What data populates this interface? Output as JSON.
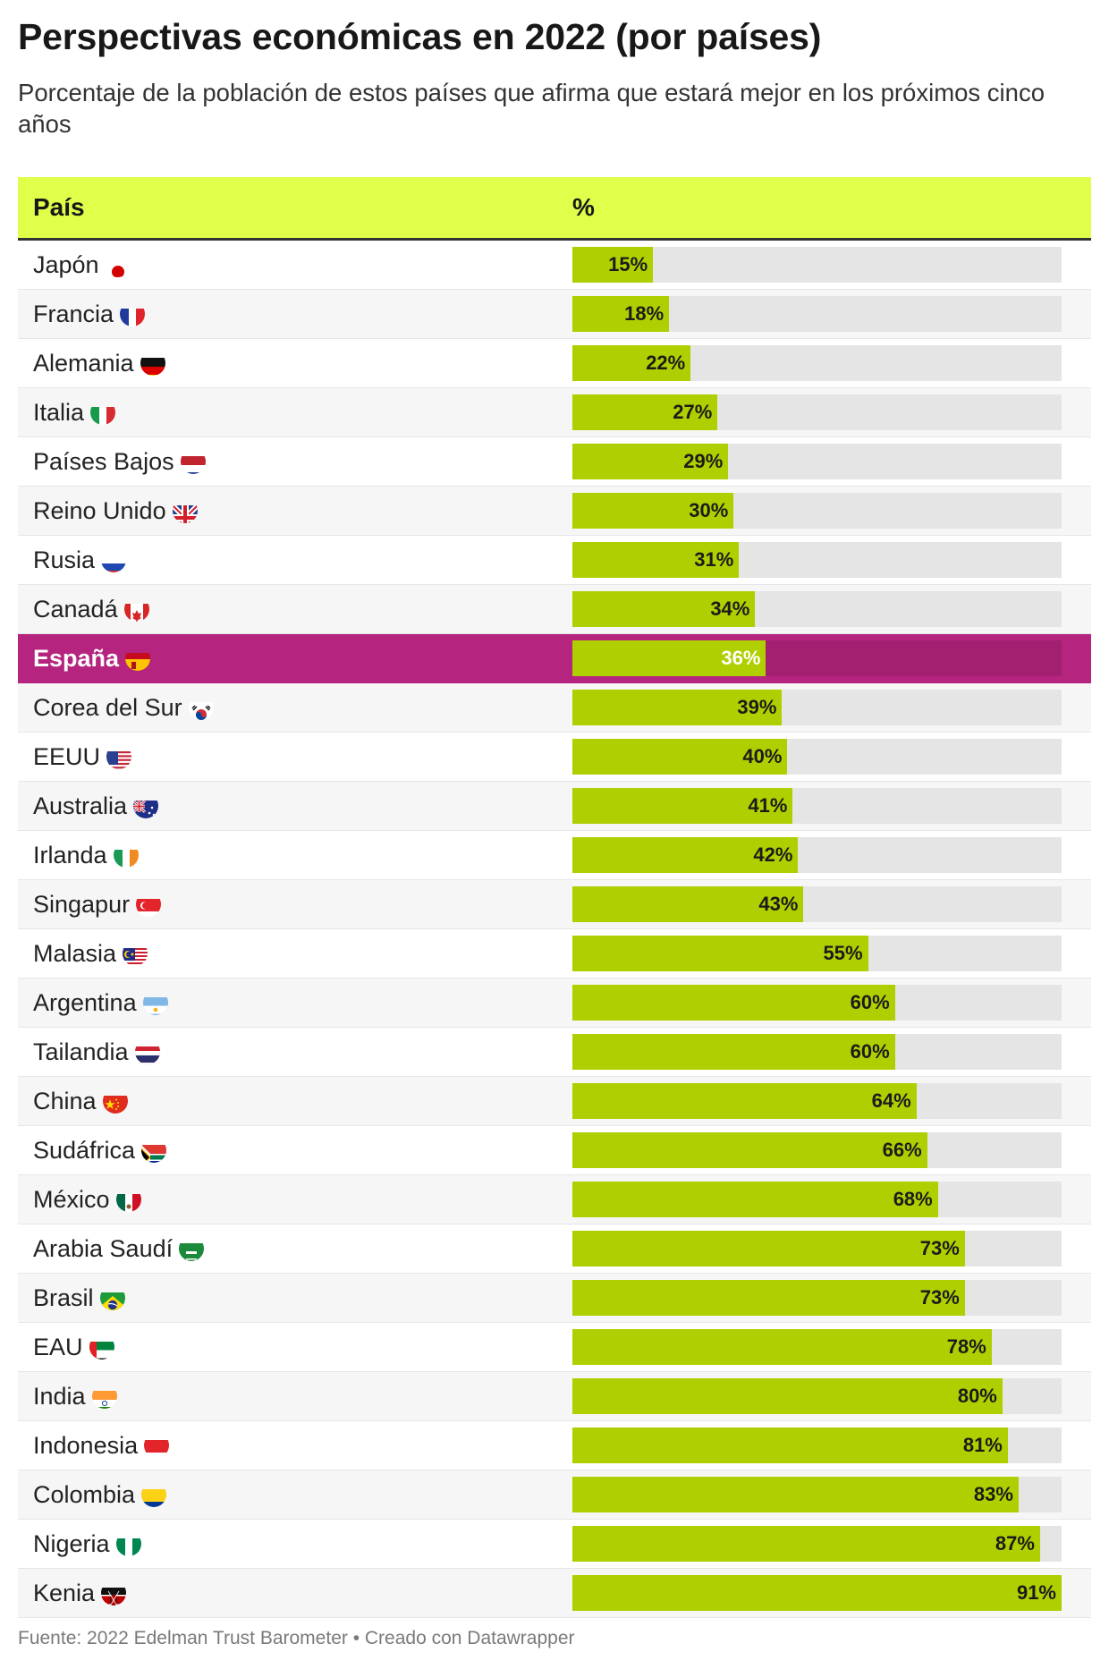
{
  "title": "Perspectivas económicas en 2022 (por países)",
  "subtitle": "Porcentaje de la población de estos países que afirma que estará mejor en los próximos cinco años",
  "table": {
    "header_country": "País",
    "header_pct": "%"
  },
  "footer": "Fuente: 2022 Edelman Trust Barometer • Creado con Datawrapper",
  "colors": {
    "header": "#dfff4a",
    "bar": "#b0cf00",
    "track": "#e5e5e5",
    "highlight": "#b5247e"
  },
  "chart_data": {
    "type": "bar",
    "orientation": "horizontal",
    "xlim": [
      0,
      91
    ],
    "value_suffix": "%",
    "highlight": "España",
    "categories": [
      "Japón",
      "Francia",
      "Alemania",
      "Italia",
      "Países Bajos",
      "Reino Unido",
      "Rusia",
      "Canadá",
      "España",
      "Corea del Sur",
      "EEUU",
      "Australia",
      "Irlanda",
      "Singapur",
      "Malasia",
      "Argentina",
      "Tailandia",
      "China",
      "Sudáfrica",
      "México",
      "Arabia Saudí",
      "Brasil",
      "EAU",
      "India",
      "Indonesia",
      "Colombia",
      "Nigeria",
      "Kenia"
    ],
    "values": [
      15,
      18,
      22,
      27,
      29,
      30,
      31,
      34,
      36,
      39,
      40,
      41,
      42,
      43,
      55,
      60,
      60,
      64,
      66,
      68,
      73,
      73,
      78,
      80,
      81,
      83,
      87,
      91
    ],
    "flag_icons": [
      "jp-flag-icon",
      "fr-flag-icon",
      "de-flag-icon",
      "it-flag-icon",
      "nl-flag-icon",
      "gb-flag-icon",
      "ru-flag-icon",
      "ca-flag-icon",
      "es-flag-icon",
      "kr-flag-icon",
      "us-flag-icon",
      "au-flag-icon",
      "ie-flag-icon",
      "sg-flag-icon",
      "my-flag-icon",
      "ar-flag-icon",
      "th-flag-icon",
      "cn-flag-icon",
      "za-flag-icon",
      "mx-flag-icon",
      "sa-flag-icon",
      "br-flag-icon",
      "ae-flag-icon",
      "in-flag-icon",
      "id-flag-icon",
      "co-flag-icon",
      "ng-flag-icon",
      "ke-flag-icon"
    ]
  }
}
